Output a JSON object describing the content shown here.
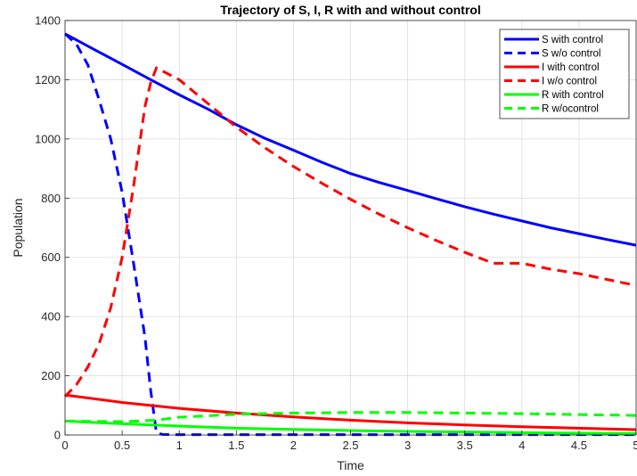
{
  "chart_data": {
    "type": "line",
    "title": "Trajectory of S, I, R with and without control",
    "xlabel": "Time",
    "ylabel": "Population",
    "xlim": [
      0,
      5
    ],
    "ylim": [
      0,
      1400
    ],
    "xticks": [
      0,
      0.5,
      1,
      1.5,
      2,
      2.5,
      3,
      3.5,
      4,
      4.5,
      5
    ],
    "xtick_labels": [
      "0",
      "0.5",
      "1",
      "1.5",
      "2",
      "2.5",
      "3",
      "3.5",
      "4",
      "4.5",
      "5"
    ],
    "yticks": [
      0,
      200,
      400,
      600,
      800,
      1000,
      1200,
      1400
    ],
    "ytick_labels": [
      "0",
      "200",
      "400",
      "600",
      "800",
      "1000",
      "1200",
      "1400"
    ],
    "grid": true,
    "legend_position": "top-right",
    "series": [
      {
        "name": "S with control",
        "color": "#0000ff",
        "style": "solid",
        "x": [
          0,
          0.25,
          0.5,
          0.75,
          1,
          1.25,
          1.5,
          1.75,
          2,
          2.25,
          2.5,
          2.75,
          3,
          3.25,
          3.5,
          3.75,
          4,
          4.25,
          4.5,
          4.75,
          5
        ],
        "y": [
          1355,
          1303,
          1252,
          1200,
          1149,
          1101,
          1048,
          1002,
          962,
          921,
          883,
          853,
          826,
          798,
          771,
          746,
          723,
          700,
          680,
          660,
          641
        ]
      },
      {
        "name": "S w/o control",
        "color": "#0000ff",
        "style": "dashed",
        "x": [
          0,
          0.1,
          0.2,
          0.3,
          0.4,
          0.5,
          0.6,
          0.7,
          0.75,
          0.8,
          0.85,
          1,
          2,
          3,
          4,
          5
        ],
        "y": [
          1355,
          1320,
          1250,
          1130,
          1000,
          820,
          580,
          330,
          150,
          8,
          2,
          1,
          1,
          1,
          1,
          1
        ]
      },
      {
        "name": "I with control",
        "color": "#ff0000",
        "style": "solid",
        "x": [
          0,
          0.5,
          1,
          1.5,
          2,
          2.5,
          3,
          3.5,
          4,
          4.5,
          5
        ],
        "y": [
          135,
          110,
          90,
          74,
          61,
          50,
          41,
          34,
          28,
          23,
          18
        ]
      },
      {
        "name": "I w/o control",
        "color": "#ff0000",
        "style": "dashed",
        "x": [
          0,
          0.1,
          0.2,
          0.3,
          0.4,
          0.5,
          0.6,
          0.7,
          0.75,
          0.8,
          1,
          1.25,
          1.5,
          1.75,
          2,
          2.25,
          2.5,
          2.75,
          3,
          3.25,
          3.5,
          3.75,
          4,
          4.25,
          4.5,
          4.75,
          5
        ],
        "y": [
          130,
          170,
          230,
          310,
          430,
          600,
          840,
          1110,
          1190,
          1240,
          1200,
          1120,
          1040,
          970,
          907,
          850,
          796,
          746,
          700,
          657,
          617,
          580,
          580,
          560,
          545,
          525,
          505
        ]
      },
      {
        "name": "R with control",
        "color": "#00ff00",
        "style": "solid",
        "x": [
          0,
          0.5,
          1,
          1.5,
          2,
          2.5,
          3,
          3.5,
          4,
          4.5,
          5
        ],
        "y": [
          47,
          38,
          30,
          23,
          19,
          15,
          12,
          10,
          8,
          6,
          5
        ]
      },
      {
        "name": "R  w/ocontrol",
        "color": "#00ff00",
        "style": "dashed",
        "x": [
          0,
          0.5,
          0.8,
          1,
          1.5,
          2,
          2.5,
          3,
          3.5,
          4,
          4.5,
          5
        ],
        "y": [
          47,
          45,
          50,
          60,
          70,
          74,
          76,
          76,
          74,
          72,
          69,
          66
        ]
      }
    ]
  }
}
